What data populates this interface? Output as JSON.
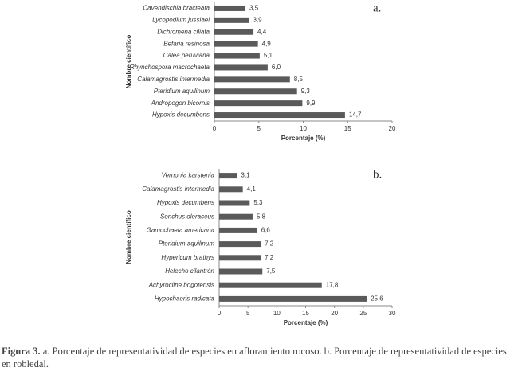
{
  "chart_data": [
    {
      "type": "bar",
      "orientation": "horizontal",
      "panel_label": "a.",
      "categories": [
        "Cavendischia bracteata",
        "Lycopodium jussiaei",
        "Dichromena ciliata",
        "Befaria resinosa",
        "Calea peruviana",
        "Rhynchospora macrochaeta",
        "Calamagrostis intermedia",
        "Pteridium aquilinum",
        "Andropogon bicornis",
        "Hypoxis decumbens"
      ],
      "values": [
        3.5,
        3.9,
        4.4,
        4.9,
        5.1,
        6.0,
        8.5,
        9.3,
        9.9,
        14.7
      ],
      "value_labels": [
        "3,5",
        "3,9",
        "4,4",
        "4,9",
        "5,1",
        "6,0",
        "8,5",
        "9,3",
        "9,9",
        "14,7"
      ],
      "color": "#5a5a5a",
      "x_label": "Porcentaje (%)",
      "y_label": "Nombre científico",
      "xlim": [
        0,
        20
      ],
      "xticks": [
        0,
        5,
        10,
        15,
        20
      ]
    },
    {
      "type": "bar",
      "orientation": "horizontal",
      "panel_label": "b.",
      "categories": [
        "Vernonia karstenia",
        "Calamagrostis intermedia",
        "Hypoxis decumbens",
        "Sonchus oleraceus",
        "Gamochaeta americana",
        "Pteridium aquilinum",
        "Hypericum brathys",
        "Helecho cilantrón",
        "Achyrocline bogotensis",
        "Hypochaeris radicata"
      ],
      "values": [
        3.1,
        4.1,
        5.3,
        5.8,
        6.6,
        7.2,
        7.2,
        7.5,
        17.8,
        25.6
      ],
      "value_labels": [
        "3,1",
        "4,1",
        "5,3",
        "5,8",
        "6,6",
        "7,2",
        "7,2",
        "7,5",
        "17,8",
        "25,6"
      ],
      "color": "#5a5a5a",
      "x_label": "Porcentaje (%)",
      "y_label": "Nombre científico",
      "xlim": [
        0,
        30
      ],
      "xticks": [
        0,
        5,
        10,
        15,
        20,
        25,
        30
      ]
    }
  ],
  "caption": {
    "label": "Figura 3.",
    "text": "a. Porcentaje de representatividad de especies en afloramiento rocoso. b. Porcentaje de representatividad de especies en robledal."
  }
}
